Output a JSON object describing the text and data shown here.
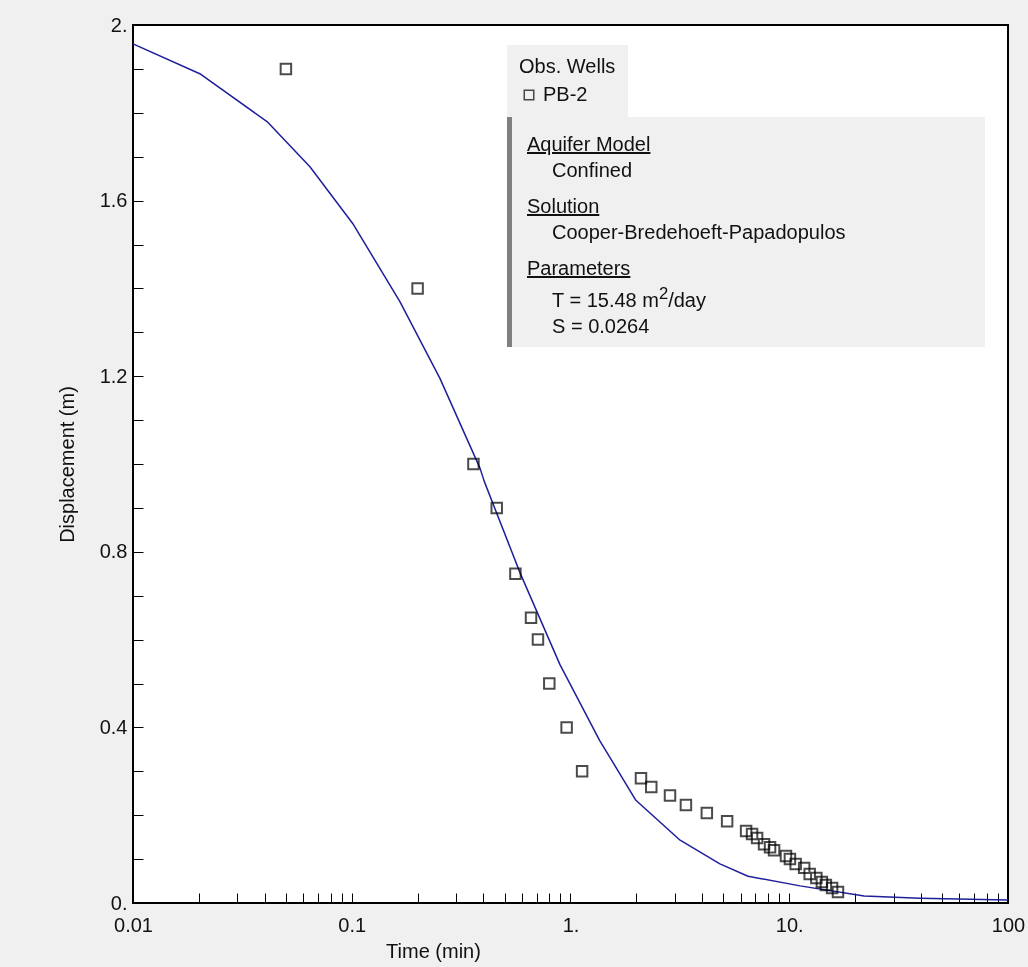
{
  "chart_data": {
    "type": "scatter",
    "xlabel": "Time (min)",
    "ylabel": "Displacement (m)",
    "legend_title": "Obs. Wells",
    "legend": "top right",
    "log": "x",
    "grid": false,
    "xlim": [
      0.01,
      100
    ],
    "ylim": [
      0,
      2
    ],
    "xticks": [
      {
        "value": 0.01,
        "label": "0.01"
      },
      {
        "value": 0.02,
        "label": null
      },
      {
        "value": 0.03,
        "label": null
      },
      {
        "value": 0.04,
        "label": null
      },
      {
        "value": 0.05,
        "label": null
      },
      {
        "value": 0.06,
        "label": null
      },
      {
        "value": 0.07,
        "label": null
      },
      {
        "value": 0.08,
        "label": null
      },
      {
        "value": 0.09,
        "label": null
      },
      {
        "value": 0.1,
        "label": "0.1"
      },
      {
        "value": 0.2,
        "label": null
      },
      {
        "value": 0.3,
        "label": null
      },
      {
        "value": 0.4,
        "label": null
      },
      {
        "value": 0.5,
        "label": null
      },
      {
        "value": 0.6,
        "label": null
      },
      {
        "value": 0.7,
        "label": null
      },
      {
        "value": 0.8,
        "label": null
      },
      {
        "value": 0.9,
        "label": null
      },
      {
        "value": 1,
        "label": "1."
      },
      {
        "value": 2,
        "label": null
      },
      {
        "value": 3,
        "label": null
      },
      {
        "value": 4,
        "label": null
      },
      {
        "value": 5,
        "label": null
      },
      {
        "value": 6,
        "label": null
      },
      {
        "value": 7,
        "label": null
      },
      {
        "value": 8,
        "label": null
      },
      {
        "value": 9,
        "label": null
      },
      {
        "value": 10,
        "label": "10."
      },
      {
        "value": 20,
        "label": null
      },
      {
        "value": 30,
        "label": null
      },
      {
        "value": 40,
        "label": null
      },
      {
        "value": 50,
        "label": null
      },
      {
        "value": 60,
        "label": null
      },
      {
        "value": 70,
        "label": null
      },
      {
        "value": 80,
        "label": null
      },
      {
        "value": 90,
        "label": null
      },
      {
        "value": 100,
        "label": "100"
      }
    ],
    "yticks": [
      {
        "value": 0,
        "label": "0."
      },
      {
        "value": 0.1,
        "label": null
      },
      {
        "value": 0.2,
        "label": null
      },
      {
        "value": 0.3,
        "label": null
      },
      0.4,
      {
        "value": 0.5,
        "label": null
      },
      {
        "value": 0.6,
        "label": null
      },
      {
        "value": 0.7,
        "label": null
      },
      0.8,
      {
        "value": 0.9,
        "label": null
      },
      {
        "value": 1,
        "label": null
      },
      {
        "value": 1.1,
        "label": null
      },
      1.2,
      {
        "value": 1.3,
        "label": null
      },
      {
        "value": 1.4,
        "label": null
      },
      {
        "value": 1.5,
        "label": null
      },
      1.6,
      {
        "value": 1.7,
        "label": null
      },
      {
        "value": 1.8,
        "label": null
      },
      {
        "value": 1.9,
        "label": null
      },
      {
        "value": 2,
        "label": "2."
      }
    ],
    "series": [
      {
        "type": "line",
        "color": "#1f1f9c",
        "x": [
          0.01,
          0.0202,
          0.041,
          0.0644,
          0.101,
          0.166,
          0.253,
          0.386,
          0.403,
          0.588,
          0.895,
          1.36,
          1.99,
          3.17,
          4.82,
          6.48,
          11.2,
          22,
          39.6,
          100
        ],
        "values": [
          1.957,
          1.889,
          1.78,
          1.677,
          1.548,
          1.37,
          1.195,
          0.99,
          0.961,
          0.752,
          0.543,
          0.37,
          0.234,
          0.143,
          0.089,
          0.061,
          0.039,
          0.016,
          0.011,
          0.007
        ]
      },
      {
        "type": "scatter",
        "name": "PB-2",
        "color": "#000000",
        "marker": "square",
        "x": [
          0.05,
          0.2,
          0.36,
          0.46,
          0.56,
          0.66,
          0.71,
          0.8,
          0.96,
          1.13,
          2.1,
          2.34,
          2.85,
          3.37,
          4.2,
          5.2,
          6.35,
          6.76,
          7.13,
          7.67,
          8.17,
          8.52,
          9.66,
          10.07,
          10.7,
          11.7,
          12.4,
          13.3,
          14.1,
          14.7,
          15.7,
          16.7
        ],
        "values": [
          1.9,
          1.4,
          1.0,
          0.9,
          0.75,
          0.65,
          0.6,
          0.5,
          0.4,
          0.3,
          0.284,
          0.264,
          0.245,
          0.223,
          0.205,
          0.186,
          0.164,
          0.157,
          0.148,
          0.134,
          0.127,
          0.12,
          0.107,
          0.1,
          0.089,
          0.08,
          0.066,
          0.057,
          0.048,
          0.041,
          0.034,
          0.025
        ]
      }
    ],
    "annotations": [
      "Aquifer Model",
      "Confined",
      "Solution",
      "Cooper-Bredehoeft-Papadopulos",
      "Parameters",
      "T = 15.48 m$^{2}$/day",
      "S = 0.0264"
    ]
  }
}
